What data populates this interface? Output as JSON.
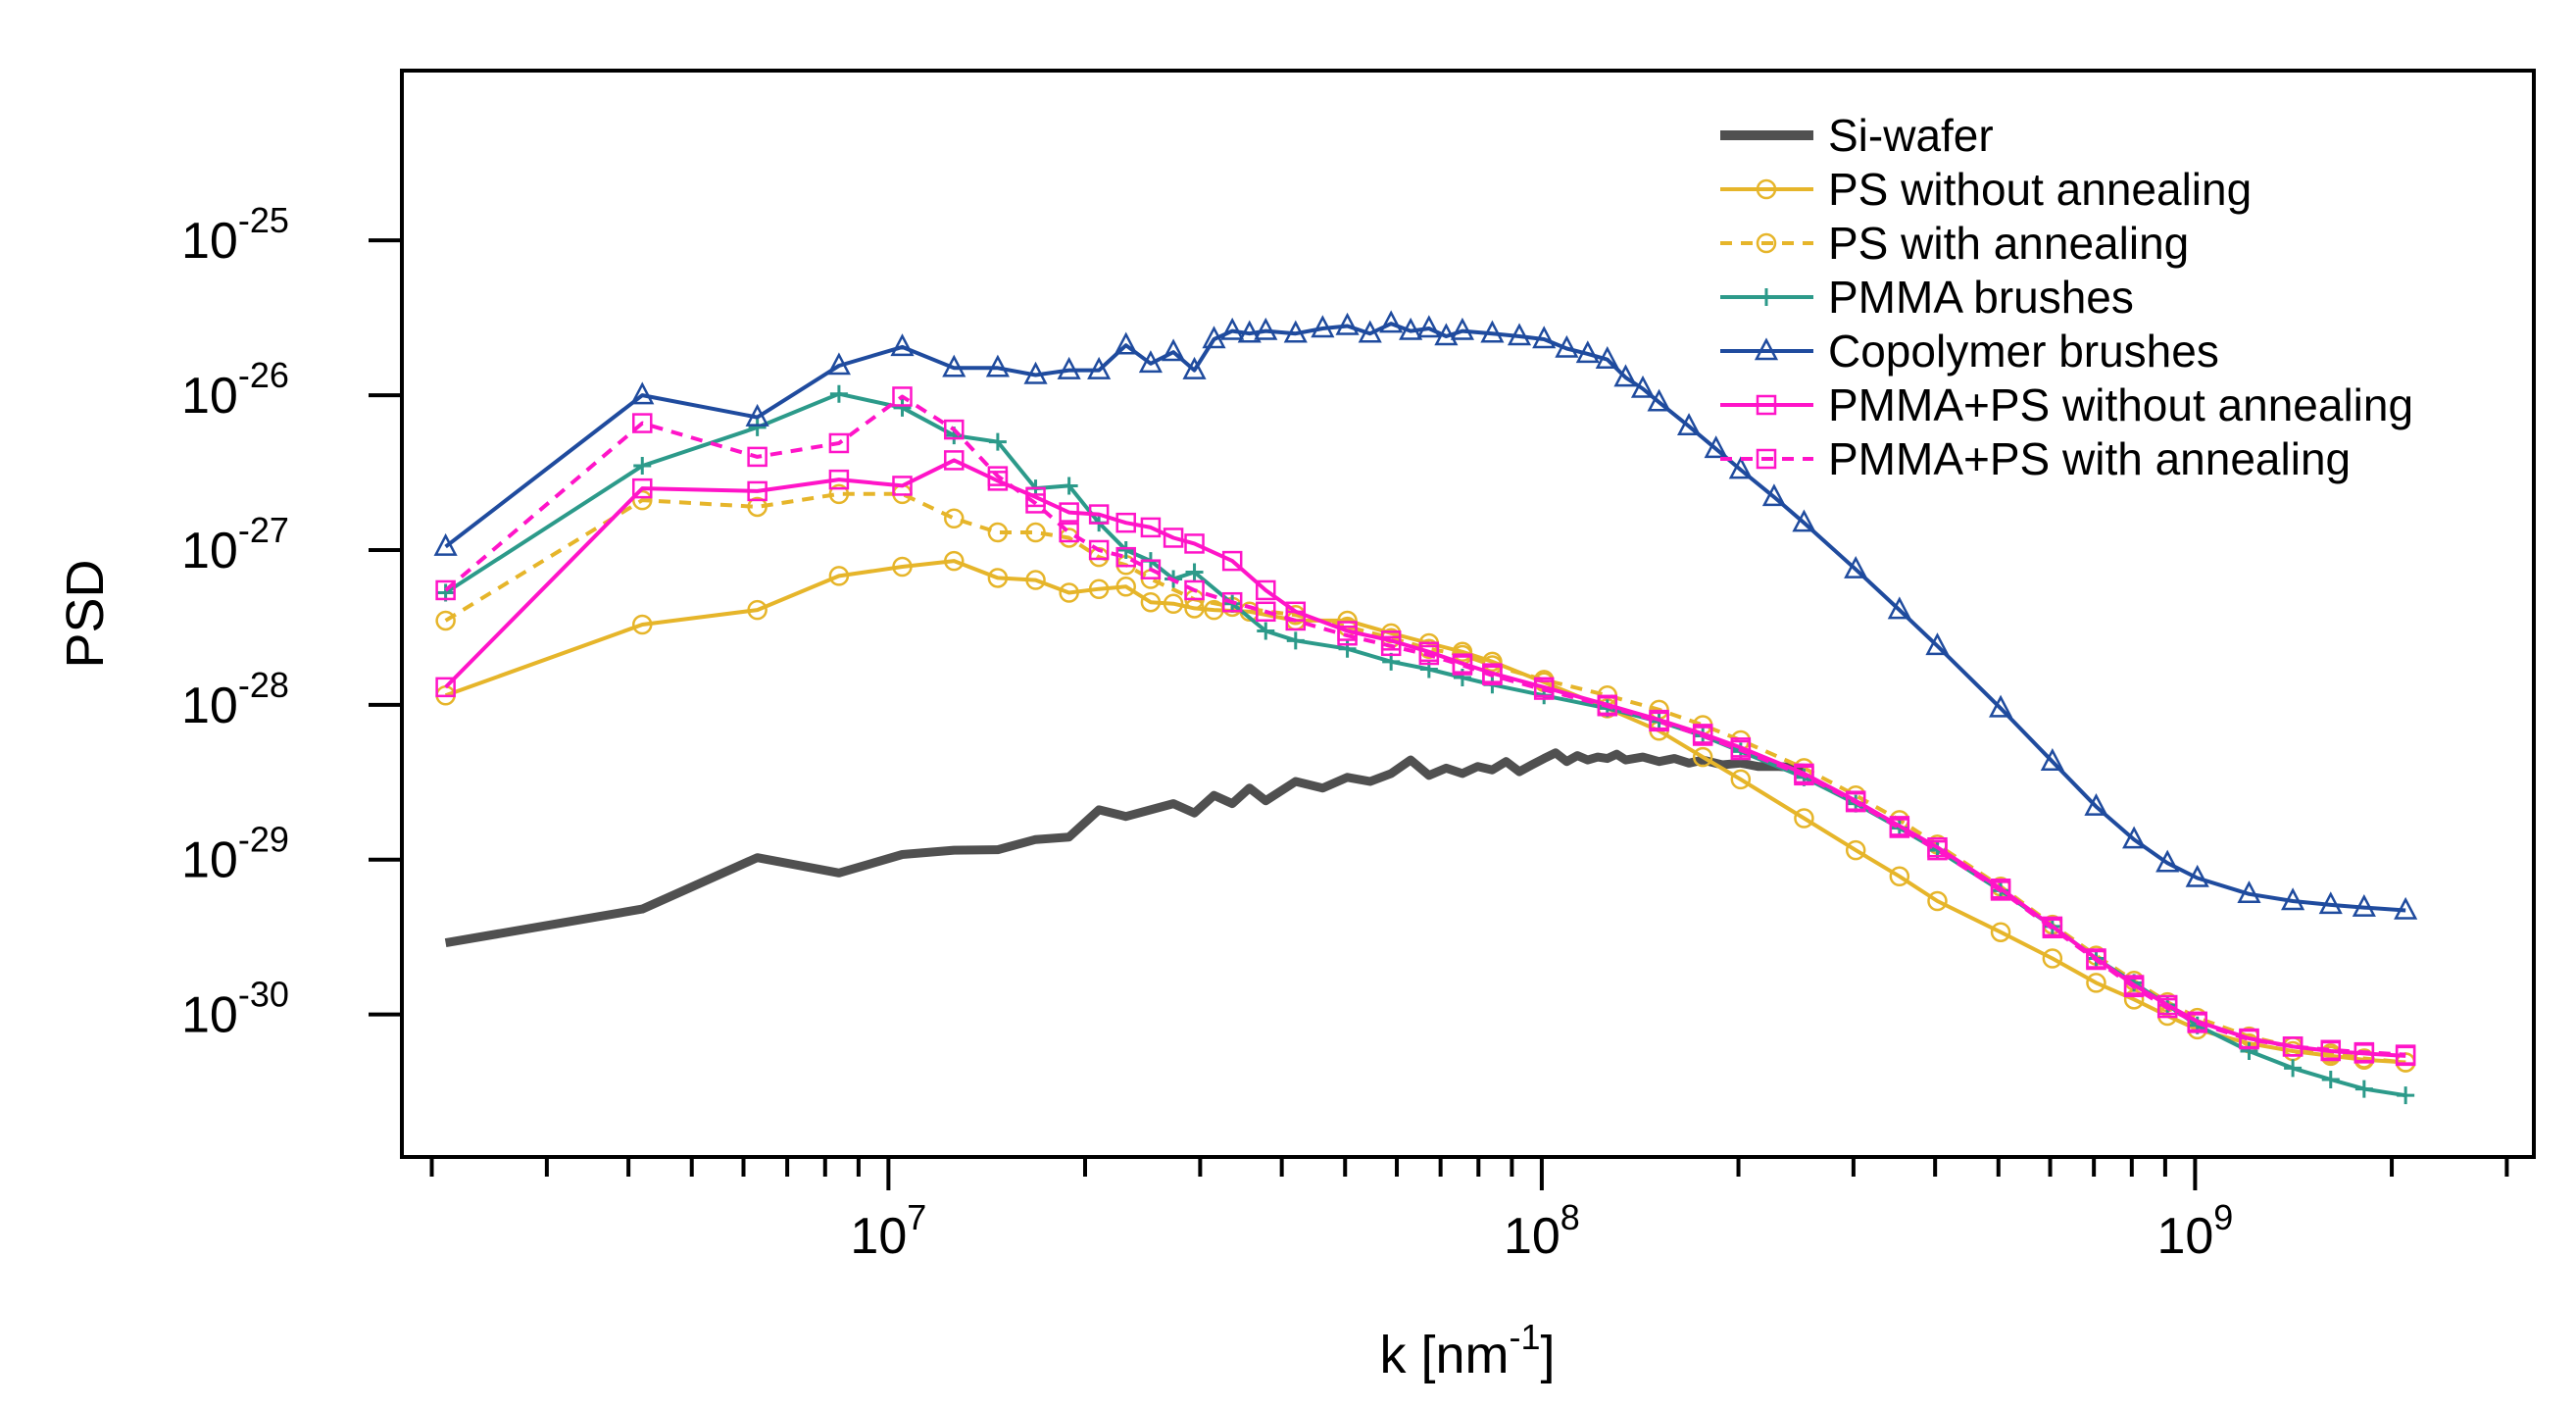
{
  "chart_data": {
    "type": "line",
    "title": "",
    "xlabel": "k [nm",
    "xlabel_sup": "-1",
    "xlabel_tail": "]",
    "ylabel": "PSD",
    "xscale": "log",
    "yscale": "log",
    "xlim": [
      1800000,
      3300000000
    ],
    "ylim": [
      1.2e-31,
      1.25e-24
    ],
    "x_ticks": [
      {
        "value": 10000000,
        "base": "10",
        "exp": "7"
      },
      {
        "value": 100000000,
        "base": "10",
        "exp": "8"
      },
      {
        "value": 1000000000,
        "base": "10",
        "exp": "9"
      }
    ],
    "y_ticks": [
      {
        "value": 1e-25,
        "base": "10",
        "exp": "-25"
      },
      {
        "value": 1e-26,
        "base": "10",
        "exp": "-26"
      },
      {
        "value": 1e-27,
        "base": "10",
        "exp": "-27"
      },
      {
        "value": 1e-28,
        "base": "10",
        "exp": "-28"
      },
      {
        "value": 1e-29,
        "base": "10",
        "exp": "-29"
      },
      {
        "value": 1e-30,
        "base": "10",
        "exp": "-30"
      }
    ],
    "legend_position": "top-right",
    "series": [
      {
        "name": "Si-wafer",
        "color": "#505050",
        "dash": "solid",
        "marker": "none",
        "x": [
          2100000,
          4200000,
          6300000,
          8400000,
          10500000,
          12600000,
          14700000,
          16800000,
          18900000,
          21000000,
          23100000,
          25200000,
          27300000,
          29400000,
          31500000,
          33600000,
          35700000,
          37800000,
          42000000,
          46200000,
          50400000,
          54600000,
          58800000,
          63000000,
          67200000,
          71400000,
          75600000,
          79800000,
          84000000,
          88200000,
          92400000,
          96600000,
          100800000,
          105000000,
          109200000,
          113400000,
          117600000,
          121800000,
          126000000,
          130200000,
          134400000,
          142800000,
          151200000,
          159600000,
          168000000,
          176400000,
          189000000,
          201600000,
          214200000,
          231000000,
          252000000
        ],
        "y": [
          2.9e-30,
          4.8e-30,
          1.03e-29,
          8.2e-30,
          1.08e-29,
          1.15e-29,
          1.16e-29,
          1.35e-29,
          1.4e-29,
          2.1e-29,
          1.9e-29,
          2.1e-29,
          2.3e-29,
          2e-29,
          2.6e-29,
          2.3e-29,
          2.9e-29,
          2.4e-29,
          3.2e-29,
          2.9e-29,
          3.4e-29,
          3.2e-29,
          3.6e-29,
          4.4e-29,
          3.5e-29,
          3.9e-29,
          3.6e-29,
          4e-29,
          3.8e-29,
          4.3e-29,
          3.7e-29,
          4.1e-29,
          4.5e-29,
          4.9e-29,
          4.3e-29,
          4.7e-29,
          4.4e-29,
          4.6e-29,
          4.5e-29,
          4.8e-29,
          4.4e-29,
          4.6e-29,
          4.3e-29,
          4.5e-29,
          4.2e-29,
          4.4e-29,
          4.1e-29,
          4.2e-29,
          4e-29,
          4e-29,
          3.9e-29
        ]
      },
      {
        "name": "PS without annealing",
        "color": "#E6B52A",
        "dash": "solid",
        "marker": "circle",
        "x": [
          2100000,
          4200000,
          6300000,
          8400000,
          10500000,
          12600000,
          14700000,
          16800000,
          18900000,
          21000000,
          23100000,
          25200000,
          27300000,
          29400000,
          31500000,
          35700000,
          42000000,
          50400000,
          58800000,
          67200000,
          75600000,
          84000000,
          100800000,
          126000000,
          151200000,
          176400000,
          201600000,
          252000000,
          302400000,
          352800000,
          403200000,
          504000000,
          604800000,
          705600000,
          806400000,
          907200000,
          1008000000,
          1209600000,
          1411200000,
          1612800000,
          1814400000,
          2100000000
        ],
        "y": [
          1.15e-28,
          3.3e-28,
          4.1e-28,
          6.8e-28,
          7.8e-28,
          8.5e-28,
          6.6e-28,
          6.4e-28,
          5.3e-28,
          5.6e-28,
          5.8e-28,
          4.6e-28,
          4.5e-28,
          4.2e-28,
          4.1e-28,
          4e-28,
          3.5e-28,
          3.5e-28,
          2.9e-28,
          2.5e-28,
          2.2e-28,
          1.9e-28,
          1.4e-28,
          9.5e-29,
          6.8e-29,
          4.6e-29,
          3.3e-29,
          1.85e-29,
          1.15e-29,
          7.8e-30,
          5.4e-30,
          3.4e-30,
          2.3e-30,
          1.6e-30,
          1.25e-30,
          9.8e-31,
          8e-31,
          6.5e-31,
          5.8e-31,
          5.4e-31,
          5.1e-31,
          4.9e-31
        ]
      },
      {
        "name": "PS with annealing",
        "color": "#E6B52A",
        "dash": "dashed",
        "marker": "circle",
        "x": [
          2100000,
          4200000,
          6300000,
          8400000,
          10500000,
          12600000,
          14700000,
          16800000,
          18900000,
          21000000,
          23100000,
          25200000,
          29400000,
          33600000,
          42000000,
          50400000,
          58800000,
          67200000,
          75600000,
          84000000,
          100800000,
          126000000,
          151200000,
          176400000,
          201600000,
          252000000,
          302400000,
          352800000,
          403200000,
          504000000,
          604800000,
          705600000,
          806400000,
          907200000,
          1008000000,
          1209600000,
          1411200000,
          1612800000,
          1814400000,
          2100000000
        ],
        "y": [
          3.5e-28,
          2.1e-27,
          1.9e-27,
          2.3e-27,
          2.3e-27,
          1.6e-27,
          1.3e-27,
          1.3e-27,
          1.2e-27,
          9e-28,
          8e-28,
          6.5e-28,
          4.8e-28,
          4.3e-28,
          3.8e-28,
          3.2e-28,
          2.7e-28,
          2.3e-28,
          2.1e-28,
          1.8e-28,
          1.45e-28,
          1.15e-28,
          9.3e-29,
          7.4e-29,
          5.9e-29,
          3.9e-29,
          2.6e-29,
          1.8e-29,
          1.25e-29,
          6.7e-30,
          3.8e-30,
          2.4e-30,
          1.65e-30,
          1.2e-30,
          9.5e-31,
          7.2e-31,
          6.2e-31,
          5.6e-31,
          5.2e-31,
          4.9e-31
        ]
      },
      {
        "name": "PMMA brushes",
        "color": "#2C9A8A",
        "dash": "solid",
        "marker": "plus",
        "x": [
          2100000,
          4200000,
          6300000,
          8400000,
          10500000,
          12600000,
          14700000,
          16800000,
          18900000,
          21000000,
          23100000,
          25200000,
          27300000,
          29400000,
          33600000,
          37800000,
          42000000,
          50400000,
          58800000,
          67200000,
          75600000,
          84000000,
          100800000,
          126000000,
          151200000,
          176400000,
          201600000,
          252000000,
          302400000,
          352800000,
          403200000,
          504000000,
          604800000,
          705600000,
          806400000,
          907200000,
          1008000000,
          1209600000,
          1411200000,
          1612800000,
          1814400000,
          2100000000
        ],
        "y": [
          5.3e-28,
          3.5e-27,
          6.2e-27,
          1.02e-26,
          8.3e-27,
          5.5e-27,
          5e-27,
          2.5e-27,
          2.6e-27,
          1.5e-27,
          1e-27,
          8.5e-28,
          6.5e-28,
          7.2e-28,
          4.5e-28,
          3e-28,
          2.6e-28,
          2.3e-28,
          1.9e-28,
          1.7e-28,
          1.5e-28,
          1.35e-28,
          1.15e-28,
          9.5e-29,
          7.8e-29,
          6.3e-29,
          5e-29,
          3.4e-29,
          2.3e-29,
          1.6e-29,
          1.15e-29,
          6.3e-30,
          3.7e-30,
          2.3e-30,
          1.6e-30,
          1.15e-30,
          8.5e-31,
          5.8e-31,
          4.5e-31,
          3.8e-31,
          3.3e-31,
          3e-31
        ]
      },
      {
        "name": "Copolymer brushes",
        "color": "#1F4B9E",
        "dash": "solid",
        "marker": "triangle",
        "x": [
          2100000,
          4200000,
          6300000,
          8400000,
          10500000,
          12600000,
          14700000,
          16800000,
          18900000,
          21000000,
          23100000,
          25200000,
          27300000,
          29400000,
          31500000,
          33600000,
          35700000,
          37800000,
          42000000,
          46200000,
          50400000,
          54600000,
          58800000,
          63000000,
          67200000,
          71400000,
          75600000,
          84000000,
          92400000,
          100800000,
          109200000,
          117600000,
          126000000,
          134400000,
          142800000,
          151200000,
          168000000,
          184800000,
          201600000,
          226800000,
          252000000,
          302400000,
          352800000,
          403200000,
          504000000,
          604800000,
          705600000,
          806400000,
          907200000,
          1008000000,
          1209600000,
          1411200000,
          1612800000,
          1814400000,
          2100000000
        ],
        "y": [
          1.05e-27,
          1e-26,
          7.2e-27,
          1.55e-26,
          2.05e-26,
          1.5e-26,
          1.5e-26,
          1.35e-26,
          1.45e-26,
          1.45e-26,
          2.1e-26,
          1.6e-26,
          1.9e-26,
          1.45e-26,
          2.3e-26,
          2.6e-26,
          2.5e-26,
          2.6e-26,
          2.5e-26,
          2.7e-26,
          2.8e-26,
          2.5e-26,
          2.9e-26,
          2.6e-26,
          2.7e-26,
          2.4e-26,
          2.6e-26,
          2.5e-26,
          2.4e-26,
          2.3e-26,
          2e-26,
          1.85e-26,
          1.7e-26,
          1.3e-26,
          1.1e-26,
          9e-27,
          6.3e-27,
          4.5e-27,
          3.3e-27,
          2.2e-27,
          1.5e-27,
          7.5e-28,
          4.1e-28,
          2.4e-28,
          9.5e-29,
          4.3e-29,
          2.2e-29,
          1.35e-29,
          9.5e-30,
          7.6e-30,
          6e-30,
          5.4e-30,
          5.1e-30,
          4.9e-30,
          4.7e-30
        ]
      },
      {
        "name": "PMMA+PS without annealing",
        "color": "#FF14C8",
        "dash": "solid",
        "marker": "square",
        "x": [
          2100000,
          4200000,
          6300000,
          8400000,
          10500000,
          12600000,
          14700000,
          16800000,
          18900000,
          21000000,
          23100000,
          25200000,
          27300000,
          29400000,
          33600000,
          37800000,
          42000000,
          50400000,
          58800000,
          67200000,
          75600000,
          84000000,
          100800000,
          126000000,
          151200000,
          176400000,
          201600000,
          252000000,
          302400000,
          352800000,
          403200000,
          504000000,
          604800000,
          705600000,
          806400000,
          907200000,
          1008000000,
          1209600000,
          1411200000,
          1612800000,
          1814400000,
          2100000000
        ],
        "y": [
          1.3e-28,
          2.5e-27,
          2.4e-27,
          2.85e-27,
          2.6e-27,
          3.8e-27,
          2.8e-27,
          2.2e-27,
          1.75e-27,
          1.7e-27,
          1.5e-27,
          1.4e-27,
          1.2e-27,
          1.1e-27,
          8.5e-28,
          5.5e-28,
          4e-28,
          3e-28,
          2.6e-28,
          2.2e-28,
          1.85e-28,
          1.6e-28,
          1.3e-28,
          1e-28,
          8e-29,
          6.5e-29,
          5.3e-29,
          3.6e-29,
          2.4e-29,
          1.65e-29,
          1.2e-29,
          6.5e-30,
          3.7e-30,
          2.3e-30,
          1.55e-30,
          1.15e-30,
          9e-31,
          7e-31,
          6.2e-31,
          5.8e-31,
          5.6e-31,
          5.4e-31
        ]
      },
      {
        "name": "PMMA+PS with annealing",
        "color": "#FF14C8",
        "dash": "dashed",
        "marker": "square",
        "x": [
          2100000,
          4200000,
          6300000,
          8400000,
          10500000,
          12600000,
          14700000,
          16800000,
          18900000,
          21000000,
          23100000,
          25200000,
          29400000,
          33600000,
          37800000,
          42000000,
          50400000,
          58800000,
          67200000,
          75600000,
          84000000,
          100800000,
          126000000,
          151200000,
          176400000,
          201600000,
          252000000,
          302400000,
          352800000,
          403200000,
          504000000,
          604800000,
          705600000,
          806400000,
          907200000,
          1008000000,
          1209600000,
          1411200000,
          1612800000,
          1814400000,
          2100000000
        ],
        "y": [
          5.5e-28,
          6.6e-27,
          4e-27,
          4.9e-27,
          9.8e-27,
          6e-27,
          3e-27,
          2e-27,
          1.3e-27,
          1e-27,
          9e-28,
          7.5e-28,
          5.5e-28,
          4.6e-28,
          4e-28,
          3.5e-28,
          2.8e-28,
          2.4e-28,
          2.1e-28,
          1.8e-28,
          1.55e-28,
          1.25e-28,
          9.8e-29,
          7.8e-29,
          6.3e-29,
          5.1e-29,
          3.5e-29,
          2.35e-29,
          1.6e-29,
          1.15e-29,
          6.3e-30,
          3.6e-30,
          2.25e-30,
          1.5e-30,
          1.1e-30,
          8.8e-31,
          6.9e-31,
          6.2e-31,
          5.9e-31,
          5.7e-31,
          5.5e-31
        ]
      }
    ]
  }
}
